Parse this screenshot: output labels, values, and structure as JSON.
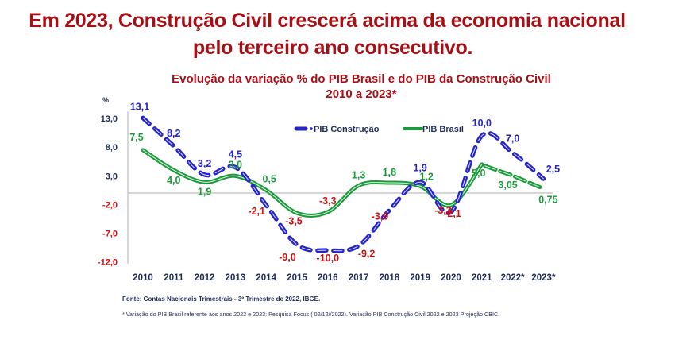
{
  "header": {
    "headline_line1": "Em 2023, Construção Civil crescerá acima da economia nacional",
    "headline_line2": "pelo terceiro ano consecutivo."
  },
  "footer": {
    "source": "Fonte: Contas Nacionais Trimestrais  - 3º Trimestre  de 2022, IBGE.",
    "note": "* Variação do  PIB Brasil  referente aos anos 2022 e 2023: Pesquisa Focus  ( 02/12//2022).  Variação PIB Construção Civil 2022 e 2023  Projeção CBIC."
  },
  "colors": {
    "headline": "#a50f15",
    "construcao": "#2424c8",
    "brasil": "#1a9a3a",
    "negative_label": "#d01010",
    "axis_label": "#1f2d5a"
  },
  "chart_data": {
    "type": "line",
    "title": "Evolução da variação % do PIB Brasil e do PIB  da Construção Civil",
    "subtitle": "2010 a 2023*",
    "ylabel": "%",
    "xlabel": "",
    "ylim": [
      -12.0,
      13.0
    ],
    "yticks": [
      13.0,
      8.0,
      3.0,
      -2.0,
      -7.0,
      -12.0
    ],
    "ytick_labels": [
      "13,0",
      "8,0",
      "3,0",
      "-2,0",
      "-7,0",
      "-12,0"
    ],
    "categories": [
      "2010",
      "2011",
      "2012",
      "2013",
      "2014",
      "2015",
      "2016",
      "2017",
      "2018",
      "2019",
      "2020",
      "2021",
      "2022*",
      "2023*"
    ],
    "legend_position": "top-center",
    "grid": false,
    "series": [
      {
        "name": "PIB Construção",
        "style": "dashed",
        "values": [
          13.1,
          8.2,
          3.2,
          4.5,
          -2.1,
          -9.0,
          -10.0,
          -9.2,
          -3.0,
          1.9,
          -3.3,
          10.0,
          7.0,
          2.5
        ],
        "labels": [
          "13,1",
          "8,2",
          "3,2",
          "4,5",
          "-2,1",
          "-9,0",
          "-10,0",
          "-9,2",
          "-3,0",
          "1,9",
          "-3,3",
          "10,0",
          "7,0",
          "2,5"
        ]
      },
      {
        "name": "PIB Brasil",
        "style": "solid",
        "projection_style": "dashed",
        "values": [
          7.5,
          4.0,
          1.9,
          3.0,
          0.5,
          -3.5,
          -3.3,
          1.3,
          1.8,
          1.2,
          -2.1,
          5.0,
          3.05,
          0.75
        ],
        "labels": [
          "7,5",
          "4,0",
          "1,9",
          "3,0",
          "0,5",
          "-3,5",
          "-3,3",
          "1,3",
          "1,8",
          "1,2",
          "-2,1",
          "5,0",
          "3,05",
          "0,75"
        ]
      }
    ]
  }
}
